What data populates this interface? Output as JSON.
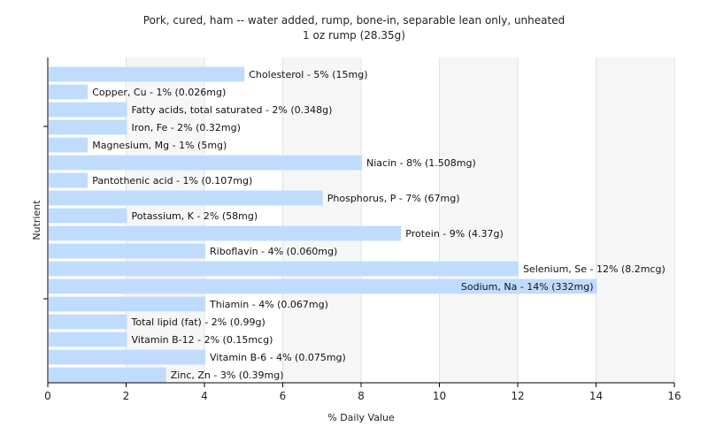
{
  "chart_data": {
    "type": "bar",
    "orientation": "horizontal",
    "title": "Pork, cured, ham -- water added, rump, bone-in, separable lean only, unheated",
    "subtitle": "1 oz rump (28.35g)",
    "xlabel": "% Daily Value",
    "ylabel": "Nutrient",
    "xlim": [
      0,
      16
    ],
    "xticks": [
      0,
      2,
      4,
      6,
      8,
      10,
      12,
      14,
      16
    ],
    "grid": true,
    "bar_color": "#bfdcff",
    "bars": [
      {
        "label": "Cholesterol - 5% (15mg)",
        "value": 5
      },
      {
        "label": "Copper, Cu - 1% (0.026mg)",
        "value": 1
      },
      {
        "label": "Fatty acids, total saturated - 2% (0.348g)",
        "value": 2
      },
      {
        "label": "Iron, Fe - 2% (0.32mg)",
        "value": 2
      },
      {
        "label": "Magnesium, Mg - 1% (5mg)",
        "value": 1
      },
      {
        "label": "Niacin - 8% (1.508mg)",
        "value": 8
      },
      {
        "label": "Pantothenic acid - 1% (0.107mg)",
        "value": 1
      },
      {
        "label": "Phosphorus, P - 7% (67mg)",
        "value": 7
      },
      {
        "label": "Potassium, K - 2% (58mg)",
        "value": 2
      },
      {
        "label": "Protein - 9% (4.37g)",
        "value": 9
      },
      {
        "label": "Riboflavin - 4% (0.060mg)",
        "value": 4
      },
      {
        "label": "Selenium, Se - 12% (8.2mcg)",
        "value": 12
      },
      {
        "label": "Sodium, Na - 14% (332mg)",
        "value": 14
      },
      {
        "label": "Thiamin - 4% (0.067mg)",
        "value": 4
      },
      {
        "label": "Total lipid (fat) - 2% (0.99g)",
        "value": 2
      },
      {
        "label": "Vitamin B-12 - 2% (0.15mcg)",
        "value": 2
      },
      {
        "label": "Vitamin B-6 - 4% (0.075mg)",
        "value": 4
      },
      {
        "label": "Zinc, Zn - 3% (0.39mg)",
        "value": 3
      }
    ]
  }
}
